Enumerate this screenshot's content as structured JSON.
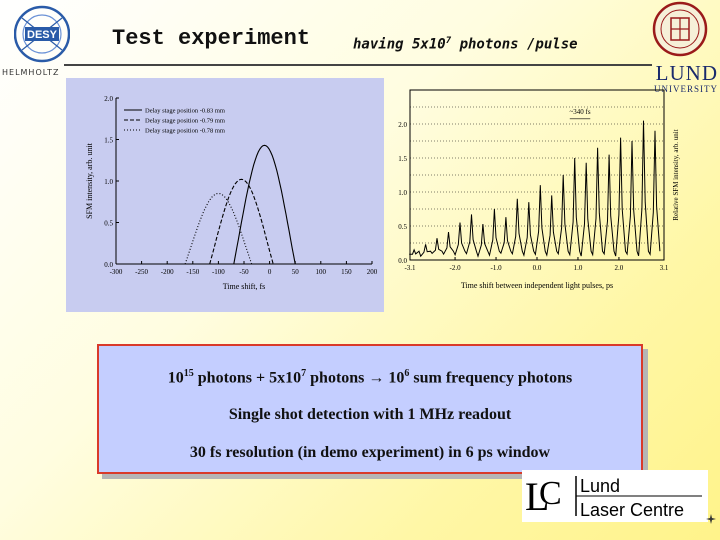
{
  "header": {
    "title": "Test experiment",
    "subtitle_prefix": "having 5x10",
    "subtitle_exp": "7",
    "subtitle_suffix": " photons /pulse",
    "desy_label": "DESY",
    "helmholtz_label": "HELMHOLTZ",
    "lund_name": "LUND",
    "lund_university": "UNIVERSITY"
  },
  "infobox": {
    "line1_part1": "10",
    "line1_exp1": "15",
    "line1_part2": " photons + 5x10",
    "line1_exp2": "7",
    "line1_part3": " photons → 10",
    "line1_exp3": "6",
    "line1_part4": " sum frequency photons",
    "line2": "Single shot detection with  1 MHz readout",
    "line3": "30 fs resolution (in demo experiment) in 6 ps window"
  },
  "llc_logo": {
    "line1": "Lund",
    "line2": "Laser Centre"
  },
  "colors": {
    "box_fill": "#c4ceff",
    "box_border": "#d93a2a",
    "lund_blue": "#1a2a6c",
    "chart_left_bg": "#c8ccf0"
  },
  "chart_data": [
    {
      "type": "line",
      "xlabel": "Time shift, fs",
      "ylabel": "SFM intensity, arb. unit",
      "xlim": [
        -300,
        200
      ],
      "ylim": [
        0,
        2.0
      ],
      "x_ticks": [
        "-300",
        "-250",
        "-200",
        "-150",
        "-100",
        "-50",
        "0",
        "50",
        "100",
        "150",
        "200"
      ],
      "y_ticks": [
        "0.0",
        "0.5",
        "1.0",
        "1.5",
        "2.0"
      ],
      "grid": false,
      "legend_position": "top-left",
      "series": [
        {
          "name": "Delay stage position -0.83 mm",
          "style": "solid",
          "peak_x": -10,
          "peak_y": 1.43,
          "width": 60
        },
        {
          "name": "Delay stage position -0.79 mm",
          "style": "dashed",
          "peak_x": -55,
          "peak_y": 1.02,
          "width": 62
        },
        {
          "name": "Delay stage position -0.78 mm",
          "style": "dotted",
          "peak_x": -100,
          "peak_y": 0.85,
          "width": 65
        }
      ]
    },
    {
      "type": "line",
      "xlabel": "Time shift between independent light pulses, ps",
      "ylabel": "Relative SFM intensity, arb. unit",
      "xlim": [
        -3.1,
        3.1
      ],
      "ylim": [
        0,
        2.5
      ],
      "x_ticks": [
        "-3.1",
        "-2.0",
        "-1.0",
        "0.0",
        "1.0",
        "2.0",
        "3.1"
      ],
      "y_ticks": [
        "0.0",
        "0.5",
        "1.0",
        "1.5",
        "2.0"
      ],
      "grid": true,
      "annotation": "~340 fs",
      "peak_spacing_ps": 0.34,
      "peak_heights": [
        0.1,
        0.18,
        0.27,
        0.36,
        0.5,
        0.62,
        0.48,
        0.7,
        0.58,
        0.85,
        0.8,
        1.05,
        0.9,
        1.2,
        1.45,
        1.38,
        1.6,
        1.5,
        1.75,
        1.7,
        2.0,
        1.85
      ]
    }
  ]
}
